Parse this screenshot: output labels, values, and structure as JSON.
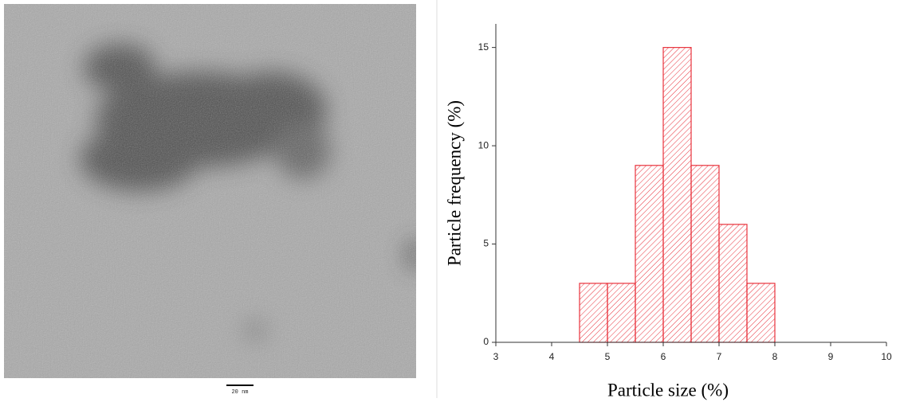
{
  "image": {
    "scale_bar": "20 nm"
  },
  "chart_data": {
    "type": "histogram",
    "xlabel": "Particle size (%)",
    "ylabel": "Particle frequency (%)",
    "bins": [
      4.5,
      5,
      5.5,
      6,
      6.5,
      7,
      7.5,
      8
    ],
    "values": [
      3,
      3,
      9,
      15,
      9,
      6,
      3
    ],
    "color": "#e8323c",
    "xlim": [
      3,
      10
    ],
    "xticks": [
      3,
      4,
      5,
      6,
      7,
      8,
      9,
      10
    ],
    "ylim": [
      0,
      16.2
    ],
    "yticks": [
      0,
      5,
      10,
      15
    ]
  }
}
